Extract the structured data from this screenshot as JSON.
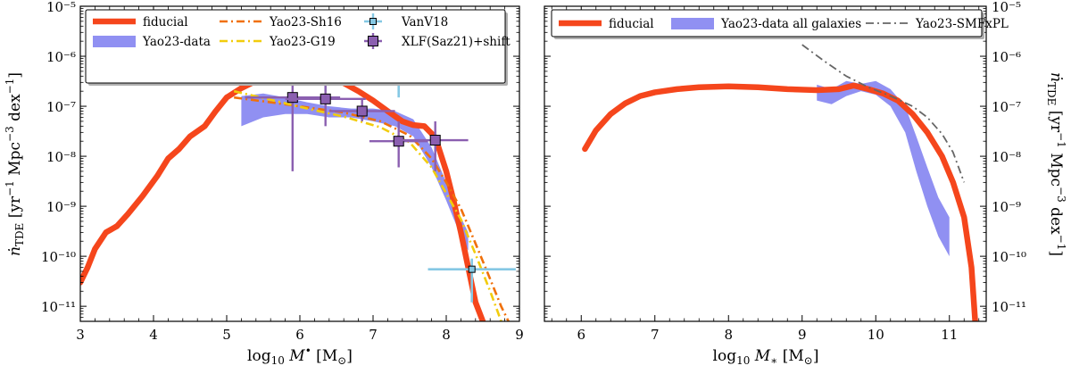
{
  "chart_data": [
    {
      "type": "line",
      "panel": "left",
      "xlabel": "log₁₀ M• [M⊙]",
      "ylabel": "ṅTDE [yr⁻¹ Mpc⁻³ dex⁻¹]",
      "xlim": [
        3,
        9
      ],
      "ylim": [
        5e-12,
        1e-05
      ],
      "yscale": "log",
      "x_ticks": [
        "3",
        "4",
        "5",
        "6",
        "7",
        "8",
        "9"
      ],
      "y_ticks": [
        "10⁻¹¹",
        "10⁻¹⁰",
        "10⁻⁹",
        "10⁻⁸",
        "10⁻⁷",
        "10⁻⁶",
        "10⁻⁵"
      ],
      "legend_position": "top",
      "legend": [
        "fiducial",
        "Yao23-data",
        "Yao23-Sh16",
        "Yao23-G19",
        "VanV18",
        "XLF(Saz21)+shift"
      ],
      "series": [
        {
          "name": "fiducial",
          "kind": "line",
          "color": "#f5461c",
          "points": [
            [
              3.0,
              3e-11
            ],
            [
              3.1,
              6e-11
            ],
            [
              3.2,
              1.4e-10
            ],
            [
              3.35,
              3e-10
            ],
            [
              3.5,
              4e-10
            ],
            [
              3.65,
              7e-10
            ],
            [
              3.85,
              1.6e-09
            ],
            [
              4.05,
              4e-09
            ],
            [
              4.2,
              9e-09
            ],
            [
              4.35,
              1.4e-08
            ],
            [
              4.5,
              2.5e-08
            ],
            [
              4.7,
              4e-08
            ],
            [
              4.85,
              8e-08
            ],
            [
              5.0,
              1.5e-07
            ],
            [
              5.2,
              2.3e-07
            ],
            [
              5.4,
              3.2e-07
            ],
            [
              5.55,
              4e-07
            ],
            [
              5.7,
              4.3e-07
            ],
            [
              5.85,
              4.1e-07
            ],
            [
              6.0,
              3.6e-07
            ],
            [
              6.15,
              3.5e-07
            ],
            [
              6.3,
              3.7e-07
            ],
            [
              6.45,
              3.6e-07
            ],
            [
              6.6,
              2.9e-07
            ],
            [
              6.8,
              2e-07
            ],
            [
              7.0,
              1.3e-07
            ],
            [
              7.2,
              8e-08
            ],
            [
              7.4,
              5e-08
            ],
            [
              7.55,
              4.2e-08
            ],
            [
              7.7,
              4e-08
            ],
            [
              7.85,
              2.4e-08
            ],
            [
              8.0,
              5e-09
            ],
            [
              8.1,
              1.3e-09
            ],
            [
              8.2,
              3e-10
            ],
            [
              8.3,
              6e-11
            ],
            [
              8.4,
              1.2e-11
            ],
            [
              8.5,
              5e-12
            ]
          ]
        },
        {
          "name": "Yao23-data",
          "kind": "band",
          "color": "#7d7df0",
          "x": [
            5.2,
            5.5,
            5.8,
            6.1,
            6.4,
            6.7,
            7.0,
            7.3,
            7.55,
            7.8,
            8.0,
            8.2,
            8.3
          ],
          "upper": [
            1.6e-07,
            1.8e-07,
            1.5e-07,
            1.2e-07,
            1e-07,
            9e-08,
            9e-08,
            8e-08,
            5.5e-08,
            1.5e-08,
            3e-09,
            6e-10,
            3e-10
          ],
          "lower": [
            4e-08,
            6e-08,
            7e-08,
            7e-08,
            6e-08,
            6e-08,
            5e-08,
            4e-08,
            2.5e-08,
            6e-09,
            1.3e-09,
            2.5e-10,
            1.3e-10
          ]
        },
        {
          "name": "Yao23-Sh16",
          "kind": "dashdot",
          "color": "#f0700a",
          "points": [
            [
              5.1,
              1.5e-07
            ],
            [
              5.6,
              1.2e-07
            ],
            [
              6.1,
              9.5e-08
            ],
            [
              6.6,
              7.5e-08
            ],
            [
              7.1,
              5e-08
            ],
            [
              7.5,
              2.6e-08
            ],
            [
              7.8,
              9e-09
            ],
            [
              8.0,
              3e-09
            ],
            [
              8.2,
              9e-10
            ],
            [
              8.4,
              1.8e-10
            ],
            [
              8.6,
              3.5e-11
            ],
            [
              8.75,
              1e-11
            ],
            [
              8.85,
              5e-12
            ]
          ]
        },
        {
          "name": "Yao23-G19",
          "kind": "dashdot",
          "color": "#f2cc0c",
          "points": [
            [
              5.1,
              2e-07
            ],
            [
              5.6,
              1.35e-07
            ],
            [
              6.1,
              9e-08
            ],
            [
              6.6,
              6.2e-08
            ],
            [
              7.1,
              3.8e-08
            ],
            [
              7.5,
              1.9e-08
            ],
            [
              7.8,
              6e-09
            ],
            [
              8.0,
              1.8e-09
            ],
            [
              8.2,
              5.5e-10
            ],
            [
              8.4,
              1.1e-10
            ],
            [
              8.6,
              2e-11
            ],
            [
              8.7,
              8e-12
            ],
            [
              8.75,
              5e-12
            ]
          ]
        },
        {
          "name": "VanV18",
          "kind": "errorbar",
          "color": "#85c8e4",
          "points": [
            {
              "x": 5.85,
              "y": 8e-07,
              "xerr": 0.65,
              "yerr_lo": 4.5e-07,
              "yerr_hi": 8e-07
            },
            {
              "x": 6.35,
              "y": 6.5e-07,
              "xerr": 0.55,
              "yerr_lo": 4.5e-07,
              "yerr_hi": 1.35e-06
            },
            {
              "x": 7.35,
              "y": 3.8e-07,
              "xerr": 0.5,
              "yerr_lo": 2.3e-07,
              "yerr_hi": 3.7e-07
            },
            {
              "x": 8.35,
              "y": 5.5e-11,
              "xerr": 0.6,
              "yerr_lo": 4.3e-11,
              "yerr_hi": 3.5e-11
            }
          ]
        },
        {
          "name": "XLF(Saz21)+shift",
          "kind": "errorbar",
          "color": "#8b5fb0",
          "points": [
            {
              "x": 5.9,
              "y": 1.5e-07,
              "xerr": 0.65,
              "yerr_lo": 1.45e-07,
              "yerr_hi": 3e-07
            },
            {
              "x": 6.35,
              "y": 1.4e-07,
              "xerr": 0.55,
              "yerr_lo": 1e-07,
              "yerr_hi": 2.1e-07
            },
            {
              "x": 6.85,
              "y": 8e-08,
              "xerr": 0.45,
              "yerr_lo": 3e-08,
              "yerr_hi": 6e-08
            },
            {
              "x": 7.35,
              "y": 2e-08,
              "xerr": 0.4,
              "yerr_lo": 1.4e-08,
              "yerr_hi": 3e-08
            },
            {
              "x": 7.85,
              "y": 2.1e-08,
              "xerr": 0.45,
              "yerr_lo": 1.6e-08,
              "yerr_hi": 2.9e-08
            }
          ]
        }
      ]
    },
    {
      "type": "line",
      "panel": "right",
      "xlabel": "log₁₀ M∗ [M⊙]",
      "ylabel": "ṅTDE [yr⁻¹ Mpc⁻³ dex⁻¹]",
      "xlim": [
        5.5,
        11.5
      ],
      "ylim": [
        5e-12,
        1e-05
      ],
      "yscale": "log",
      "x_ticks": [
        "6",
        "7",
        "8",
        "9",
        "10",
        "11"
      ],
      "y_ticks": [
        "10⁻¹¹",
        "10⁻¹⁰",
        "10⁻⁹",
        "10⁻⁸",
        "10⁻⁷",
        "10⁻⁶",
        "10⁻⁵"
      ],
      "y_tick_side": "right",
      "legend_position": "top",
      "legend": [
        "fiducial",
        "Yao23-data all galaxies",
        "Yao23-SMFxPL"
      ],
      "series": [
        {
          "name": "fiducial",
          "kind": "line",
          "color": "#f5461c",
          "points": [
            [
              6.05,
              1.4e-08
            ],
            [
              6.2,
              3.3e-08
            ],
            [
              6.4,
              7e-08
            ],
            [
              6.6,
              1.15e-07
            ],
            [
              6.8,
              1.6e-07
            ],
            [
              7.0,
              1.9e-07
            ],
            [
              7.3,
              2.2e-07
            ],
            [
              7.6,
              2.4e-07
            ],
            [
              8.0,
              2.5e-07
            ],
            [
              8.4,
              2.4e-07
            ],
            [
              8.8,
              2.2e-07
            ],
            [
              9.2,
              2.1e-07
            ],
            [
              9.5,
              2.2e-07
            ],
            [
              9.7,
              2.6e-07
            ],
            [
              9.9,
              2.2e-07
            ],
            [
              10.1,
              1.8e-07
            ],
            [
              10.3,
              1.3e-07
            ],
            [
              10.5,
              7e-08
            ],
            [
              10.7,
              3e-08
            ],
            [
              10.9,
              1e-08
            ],
            [
              11.05,
              3e-09
            ],
            [
              11.2,
              6e-10
            ],
            [
              11.3,
              6e-11
            ],
            [
              11.35,
              5e-12
            ]
          ]
        },
        {
          "name": "Yao23-data all galaxies",
          "kind": "band",
          "color": "#7d7df0",
          "x": [
            9.2,
            9.4,
            9.6,
            9.8,
            10.0,
            10.2,
            10.4,
            10.55,
            10.7,
            10.85,
            11.0
          ],
          "upper": [
            2.7e-07,
            2.2e-07,
            3.2e-07,
            2.8e-07,
            3.2e-07,
            2.2e-07,
            1e-07,
            2.5e-08,
            6e-09,
            1.5e-09,
            6e-10
          ],
          "lower": [
            1.3e-07,
            1.1e-07,
            1.6e-07,
            2e-07,
            1.7e-07,
            1e-07,
            3e-08,
            5e-09,
            1e-09,
            2.5e-10,
            1e-10
          ]
        },
        {
          "name": "Yao23-SMFxPL",
          "kind": "dashdot",
          "color": "#666666",
          "points": [
            [
              9.0,
              1.7e-06
            ],
            [
              9.3,
              8e-07
            ],
            [
              9.6,
              4e-07
            ],
            [
              9.9,
              2.4e-07
            ],
            [
              10.2,
              1.6e-07
            ],
            [
              10.5,
              1e-07
            ],
            [
              10.7,
              6e-08
            ],
            [
              10.9,
              2.8e-08
            ],
            [
              11.05,
              1.2e-08
            ],
            [
              11.2,
              3e-09
            ]
          ]
        }
      ]
    }
  ]
}
